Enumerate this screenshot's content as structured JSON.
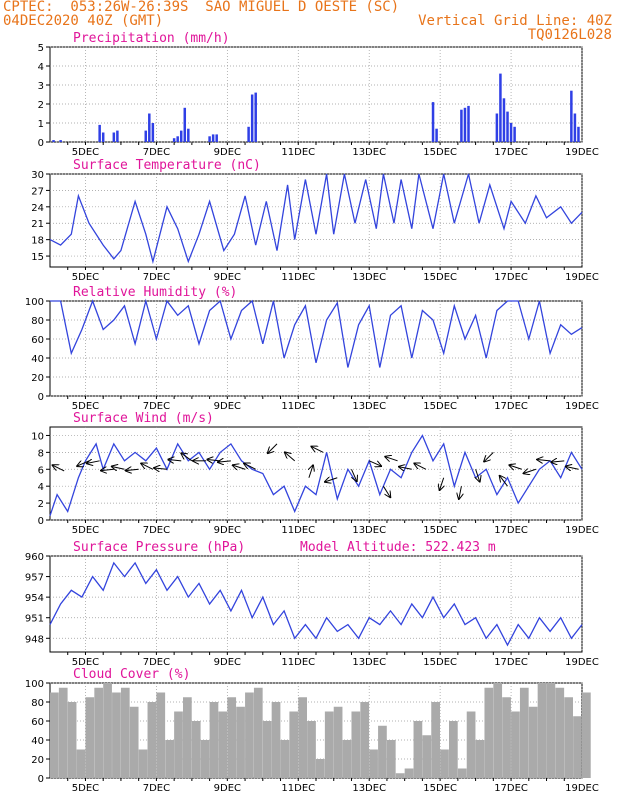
{
  "header": {
    "line1": "CPTEC:  053:26W-26:39S  SAO MIGUEL D OESTE (SC)",
    "line2_left": "04DEC2020 40Z (GMT)",
    "line2_right": "Vertical Grid Line: 40Z",
    "line3_right": "TQ0126L028"
  },
  "colors": {
    "header": "#e8741a",
    "title": "#e0159a",
    "series": "#3344dd",
    "bars": "#2f3fe6",
    "cloud": "#aaaaaa"
  },
  "chart_data": [
    {
      "type": "bar",
      "title": "Precipitation (mm/h)",
      "xticks": [
        "5DEC",
        "7DEC",
        "9DEC",
        "11DEC",
        "13DEC",
        "15DEC",
        "17DEC",
        "19DEC"
      ],
      "xrange": [
        4.0,
        19.0
      ],
      "ylim": [
        0,
        5
      ],
      "yticks": [
        0,
        1,
        2,
        3,
        4,
        5
      ],
      "grid": true,
      "x": [
        4.1,
        4.3,
        5.4,
        5.5,
        5.8,
        5.9,
        6.7,
        6.8,
        6.9,
        7.5,
        7.6,
        7.7,
        7.8,
        7.9,
        8.5,
        8.6,
        8.7,
        9.6,
        9.7,
        9.8,
        14.8,
        14.9,
        15.6,
        15.7,
        15.8,
        16.6,
        16.7,
        16.8,
        16.9,
        17.0,
        17.1,
        18.7,
        18.8,
        18.9
      ],
      "values": [
        0.1,
        0.1,
        0.9,
        0.5,
        0.5,
        0.6,
        0.6,
        1.5,
        1.0,
        0.2,
        0.3,
        0.6,
        1.8,
        0.7,
        0.3,
        0.4,
        0.4,
        0.8,
        2.5,
        2.6,
        2.1,
        0.7,
        1.7,
        1.8,
        1.9,
        1.5,
        3.6,
        2.3,
        1.6,
        1.0,
        0.8,
        2.7,
        1.5,
        0.8
      ]
    },
    {
      "type": "line",
      "title": "Surface Temperature (nC)",
      "xticks": [
        "5DEC",
        "7DEC",
        "9DEC",
        "11DEC",
        "13DEC",
        "15DEC",
        "17DEC",
        "19DEC"
      ],
      "xrange": [
        4.0,
        19.0
      ],
      "ylim": [
        13,
        30
      ],
      "yticks": [
        15,
        18,
        21,
        24,
        27,
        30
      ],
      "grid": true,
      "x": [
        4.0,
        4.3,
        4.6,
        4.8,
        5.1,
        5.5,
        5.8,
        6.0,
        6.4,
        6.7,
        6.9,
        7.3,
        7.6,
        7.9,
        8.2,
        8.5,
        8.9,
        9.2,
        9.5,
        9.8,
        10.1,
        10.4,
        10.7,
        10.9,
        11.2,
        11.5,
        11.8,
        12.0,
        12.3,
        12.6,
        12.9,
        13.2,
        13.4,
        13.7,
        13.9,
        14.2,
        14.4,
        14.8,
        15.1,
        15.4,
        15.8,
        16.1,
        16.4,
        16.8,
        17.0,
        17.4,
        17.7,
        18.0,
        18.4,
        18.7,
        19.0
      ],
      "y": [
        18,
        17,
        19,
        26,
        21,
        17,
        14.5,
        16,
        25,
        19,
        14,
        24,
        20,
        14,
        19,
        25,
        16,
        19,
        26,
        17,
        25,
        16,
        28,
        18,
        29,
        19,
        30,
        19,
        30,
        21,
        29,
        20,
        30,
        21,
        29,
        20,
        30,
        20,
        30,
        21,
        30,
        21,
        28,
        20,
        25,
        21,
        26,
        22,
        24,
        21,
        23
      ]
    },
    {
      "type": "line",
      "title": "Relative Humidity (%)",
      "xticks": [
        "5DEC",
        "7DEC",
        "9DEC",
        "11DEC",
        "13DEC",
        "15DEC",
        "17DEC",
        "19DEC"
      ],
      "xrange": [
        4.0,
        19.0
      ],
      "ylim": [
        0,
        100
      ],
      "yticks": [
        0,
        20,
        40,
        60,
        80,
        100
      ],
      "grid": true,
      "x": [
        4.0,
        4.3,
        4.6,
        4.9,
        5.2,
        5.5,
        5.8,
        6.1,
        6.4,
        6.7,
        7.0,
        7.3,
        7.6,
        7.9,
        8.2,
        8.5,
        8.8,
        9.1,
        9.4,
        9.7,
        10.0,
        10.3,
        10.6,
        10.9,
        11.2,
        11.5,
        11.8,
        12.1,
        12.4,
        12.7,
        13.0,
        13.3,
        13.6,
        13.9,
        14.2,
        14.5,
        14.8,
        15.1,
        15.4,
        15.7,
        16.0,
        16.3,
        16.6,
        16.9,
        17.2,
        17.5,
        17.8,
        18.1,
        18.4,
        18.7,
        19.0
      ],
      "y": [
        100,
        100,
        45,
        70,
        100,
        70,
        80,
        95,
        55,
        100,
        60,
        100,
        85,
        95,
        55,
        90,
        100,
        60,
        90,
        100,
        55,
        100,
        40,
        75,
        95,
        35,
        80,
        98,
        30,
        75,
        95,
        30,
        85,
        95,
        40,
        90,
        80,
        45,
        95,
        60,
        85,
        40,
        90,
        100,
        100,
        60,
        100,
        45,
        75,
        65,
        72
      ]
    },
    {
      "type": "line",
      "title": "Surface Wind (m/s)",
      "xticks": [
        "5DEC",
        "7DEC",
        "9DEC",
        "11DEC",
        "13DEC",
        "15DEC",
        "17DEC",
        "19DEC"
      ],
      "xrange": [
        4.0,
        19.0
      ],
      "ylim": [
        0,
        11
      ],
      "yticks": [
        0,
        2,
        4,
        6,
        8,
        10
      ],
      "grid": true,
      "x": [
        4.0,
        4.2,
        4.5,
        4.8,
        5.0,
        5.3,
        5.5,
        5.8,
        6.1,
        6.4,
        6.7,
        7.0,
        7.3,
        7.6,
        7.9,
        8.2,
        8.5,
        8.8,
        9.1,
        9.4,
        9.7,
        10.0,
        10.3,
        10.6,
        10.9,
        11.2,
        11.5,
        11.8,
        12.1,
        12.4,
        12.7,
        13.0,
        13.3,
        13.6,
        13.9,
        14.2,
        14.5,
        14.8,
        15.1,
        15.4,
        15.7,
        16.0,
        16.3,
        16.6,
        16.9,
        17.2,
        17.5,
        17.8,
        18.1,
        18.4,
        18.7,
        19.0
      ],
      "y": [
        0.5,
        3,
        1,
        5,
        7,
        9,
        6,
        9,
        7,
        8,
        7,
        8.5,
        6,
        9,
        7,
        8,
        6,
        8,
        9,
        7,
        6,
        5.5,
        3,
        4,
        1,
        4,
        3,
        8,
        2.5,
        6,
        4,
        7,
        3,
        6,
        5,
        8,
        10,
        7,
        9,
        4,
        8,
        5,
        6,
        3,
        5,
        2,
        4,
        6,
        7,
        5,
        8,
        6
      ],
      "arrows_x": [
        4.4,
        5.1,
        5.4,
        5.8,
        6.1,
        6.5,
        6.9,
        7.3,
        7.7,
        8.0,
        8.4,
        8.8,
        9.1,
        9.5,
        9.8,
        10.4,
        10.9,
        11.3,
        11.7,
        12.1,
        12.5,
        13.0,
        13.4,
        13.8,
        14.2,
        14.6,
        15.1,
        15.6,
        16.0,
        16.5,
        16.9,
        17.3,
        17.7,
        18.1,
        18.5,
        18.9
      ],
      "arrows_speed": [
        5.8,
        7,
        7,
        6,
        6,
        6,
        6,
        6,
        7,
        7,
        7,
        7,
        7,
        6,
        6,
        9,
        7,
        5,
        8,
        5,
        6,
        7,
        4,
        7,
        6,
        6,
        5,
        4,
        6,
        8,
        4,
        6,
        6,
        7,
        7,
        6
      ],
      "arrows_dx": [
        -0.6,
        -0.9,
        -1.0,
        -1.0,
        -0.9,
        -1.0,
        -0.8,
        -1.0,
        -1.0,
        -0.7,
        -1.0,
        -1.0,
        -1.0,
        -0.9,
        -0.8,
        -0.6,
        -0.7,
        0.3,
        -0.8,
        -0.9,
        0.4,
        0.9,
        0.5,
        -0.9,
        -1.0,
        -0.8,
        -0.3,
        -0.2,
        0.3,
        -0.7,
        -0.6,
        -0.9,
        -0.9,
        -1.0,
        -1.0,
        -0.9
      ],
      "arrows_dy": [
        0.3,
        -0.4,
        -0.2,
        -0.1,
        0.2,
        -0.1,
        0.4,
        0.1,
        0.1,
        0.5,
        0.0,
        0.1,
        -0.1,
        0.3,
        0.4,
        -0.6,
        0.6,
        0.9,
        0.4,
        -0.3,
        -0.9,
        -0.4,
        -0.8,
        0.3,
        0.2,
        0.4,
        -0.9,
        -1.0,
        -0.9,
        -0.7,
        0.8,
        0.3,
        -0.3,
        0.1,
        -0.1,
        0.2
      ]
    },
    {
      "type": "line",
      "title": "Surface Pressure (hPa)",
      "annotation": "Model Altitude: 522.423 m",
      "xticks": [
        "5DEC",
        "7DEC",
        "9DEC",
        "11DEC",
        "13DEC",
        "15DEC",
        "17DEC",
        "19DEC"
      ],
      "xrange": [
        4.0,
        19.0
      ],
      "ylim": [
        946,
        960
      ],
      "yticks": [
        948,
        951,
        954,
        957,
        960
      ],
      "grid": true,
      "x": [
        4.0,
        4.3,
        4.6,
        4.9,
        5.2,
        5.5,
        5.8,
        6.1,
        6.4,
        6.7,
        7.0,
        7.3,
        7.6,
        7.9,
        8.2,
        8.5,
        8.8,
        9.1,
        9.4,
        9.7,
        10.0,
        10.3,
        10.6,
        10.9,
        11.2,
        11.5,
        11.8,
        12.1,
        12.4,
        12.7,
        13.0,
        13.3,
        13.6,
        13.9,
        14.2,
        14.5,
        14.8,
        15.1,
        15.4,
        15.7,
        16.0,
        16.3,
        16.6,
        16.9,
        17.2,
        17.5,
        17.8,
        18.1,
        18.4,
        18.7,
        19.0
      ],
      "y": [
        950,
        953,
        955,
        954,
        957,
        955,
        959,
        957,
        959,
        956,
        958,
        955,
        957,
        954,
        956,
        953,
        955,
        952,
        955,
        951,
        954,
        950,
        952,
        948,
        950,
        948,
        951,
        949,
        950,
        948,
        951,
        950,
        952,
        950,
        953,
        951,
        954,
        951,
        953,
        950,
        951,
        948,
        950,
        947,
        950,
        948,
        951,
        949,
        951,
        948,
        950
      ]
    },
    {
      "type": "bar",
      "title": "Cloud Cover (%)",
      "xticks": [
        "5DEC",
        "7DEC",
        "9DEC",
        "11DEC",
        "13DEC",
        "15DEC",
        "17DEC",
        "19DEC"
      ],
      "xrange": [
        4.0,
        19.0
      ],
      "ylim": [
        0,
        100
      ],
      "yticks": [
        0,
        20,
        40,
        60,
        80,
        100
      ],
      "grid": true,
      "x": [
        4.0,
        4.25,
        4.5,
        4.75,
        5.0,
        5.25,
        5.5,
        5.75,
        6.0,
        6.25,
        6.5,
        6.75,
        7.0,
        7.25,
        7.5,
        7.75,
        8.0,
        8.25,
        8.5,
        8.75,
        9.0,
        9.25,
        9.5,
        9.75,
        10.0,
        10.25,
        10.5,
        10.75,
        11.0,
        11.25,
        11.5,
        11.75,
        12.0,
        12.25,
        12.5,
        12.75,
        13.0,
        13.25,
        13.5,
        13.75,
        14.0,
        14.25,
        14.5,
        14.75,
        15.0,
        15.25,
        15.5,
        15.75,
        16.0,
        16.25,
        16.5,
        16.75,
        17.0,
        17.25,
        17.5,
        17.75,
        18.0,
        18.25,
        18.5,
        18.75,
        19.0
      ],
      "values": [
        90,
        95,
        80,
        30,
        85,
        95,
        100,
        90,
        95,
        75,
        30,
        80,
        90,
        40,
        70,
        85,
        60,
        40,
        80,
        70,
        85,
        75,
        90,
        95,
        60,
        80,
        40,
        70,
        85,
        60,
        20,
        70,
        75,
        40,
        70,
        80,
        30,
        55,
        40,
        5,
        10,
        60,
        45,
        80,
        30,
        60,
        10,
        70,
        40,
        95,
        100,
        85,
        70,
        95,
        75,
        100,
        100,
        95,
        85,
        65,
        90
      ]
    }
  ]
}
